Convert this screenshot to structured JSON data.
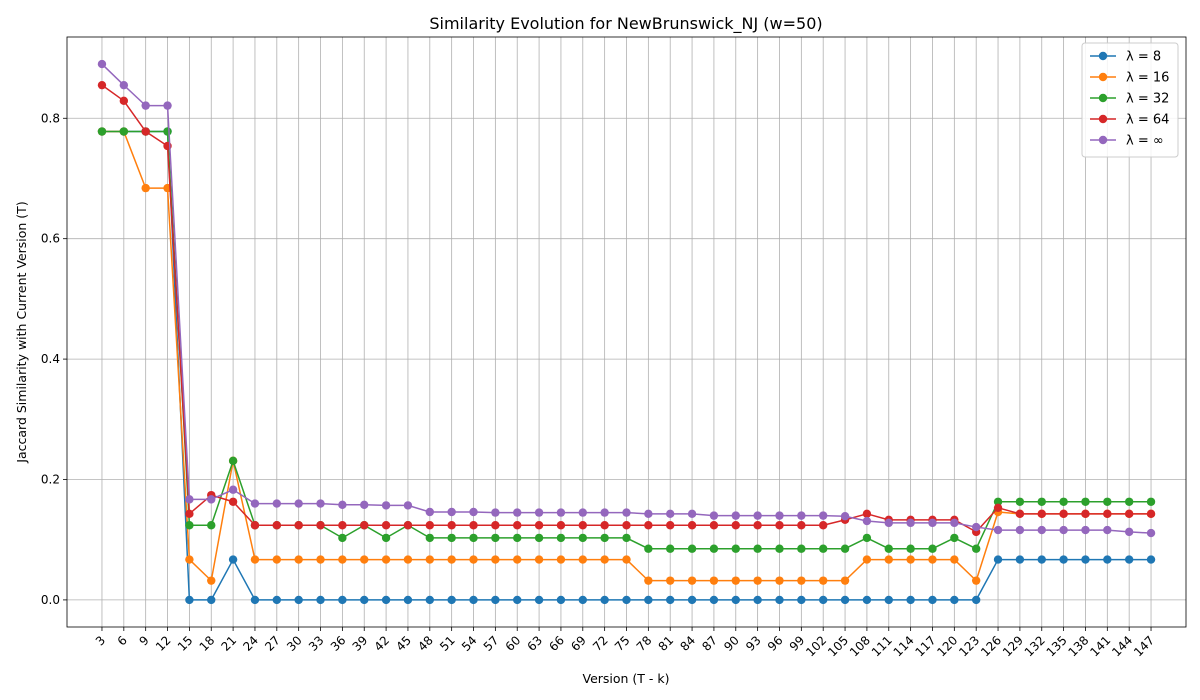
{
  "chart_data": {
    "type": "line",
    "title": "Similarity Evolution for NewBrunswick_NJ (w=50)",
    "xlabel": "Version (T - k)",
    "ylabel": "Jaccard Similarity with Current Version (T)",
    "x": [
      3,
      6,
      9,
      12,
      15,
      18,
      21,
      24,
      27,
      30,
      33,
      36,
      39,
      42,
      45,
      48,
      51,
      54,
      57,
      60,
      63,
      66,
      69,
      72,
      75,
      78,
      81,
      84,
      87,
      90,
      93,
      96,
      99,
      102,
      105,
      108,
      111,
      114,
      117,
      120,
      123,
      126,
      129,
      132,
      135,
      138,
      141,
      144,
      147
    ],
    "xlim": [
      -1.8,
      151.8
    ],
    "ylim": [
      -0.045,
      0.935
    ],
    "yticks": [
      0.0,
      0.2,
      0.4,
      0.6,
      0.8
    ],
    "ytick_labels": [
      "0.0",
      "0.2",
      "0.4",
      "0.6",
      "0.8"
    ],
    "xtick_rotation_deg": 45,
    "grid": true,
    "marker": "circle",
    "legend_position": "upper right",
    "series": [
      {
        "name": "λ = 8",
        "color": "#1f77b4",
        "values": [
          0.778,
          0.778,
          0.778,
          0.778,
          0.0,
          0.0,
          0.067,
          0.0,
          0.0,
          0.0,
          0.0,
          0.0,
          0.0,
          0.0,
          0.0,
          0.0,
          0.0,
          0.0,
          0.0,
          0.0,
          0.0,
          0.0,
          0.0,
          0.0,
          0.0,
          0.0,
          0.0,
          0.0,
          0.0,
          0.0,
          0.0,
          0.0,
          0.0,
          0.0,
          0.0,
          0.0,
          0.0,
          0.0,
          0.0,
          0.0,
          0.0,
          0.067,
          0.067,
          0.067,
          0.067,
          0.067,
          0.067,
          0.067,
          0.067
        ]
      },
      {
        "name": "λ = 16",
        "color": "#ff7f0e",
        "values": [
          0.778,
          0.778,
          0.684,
          0.684,
          0.067,
          0.032,
          0.231,
          0.067,
          0.067,
          0.067,
          0.067,
          0.067,
          0.067,
          0.067,
          0.067,
          0.067,
          0.067,
          0.067,
          0.067,
          0.067,
          0.067,
          0.067,
          0.067,
          0.067,
          0.067,
          0.032,
          0.032,
          0.032,
          0.032,
          0.032,
          0.032,
          0.032,
          0.032,
          0.032,
          0.032,
          0.067,
          0.067,
          0.067,
          0.067,
          0.067,
          0.032,
          0.146,
          0.143,
          0.143,
          0.143,
          0.143,
          0.143,
          0.143,
          0.143
        ]
      },
      {
        "name": "λ = 32",
        "color": "#2ca02c",
        "values": [
          0.778,
          0.778,
          0.778,
          0.778,
          0.124,
          0.124,
          0.231,
          0.124,
          0.124,
          0.124,
          0.124,
          0.103,
          0.124,
          0.103,
          0.124,
          0.103,
          0.103,
          0.103,
          0.103,
          0.103,
          0.103,
          0.103,
          0.103,
          0.103,
          0.103,
          0.085,
          0.085,
          0.085,
          0.085,
          0.085,
          0.085,
          0.085,
          0.085,
          0.085,
          0.085,
          0.103,
          0.085,
          0.085,
          0.085,
          0.103,
          0.085,
          0.163,
          0.163,
          0.163,
          0.163,
          0.163,
          0.163,
          0.163,
          0.163
        ]
      },
      {
        "name": "λ = 64",
        "color": "#d62728",
        "values": [
          0.855,
          0.829,
          0.778,
          0.754,
          0.143,
          0.174,
          0.163,
          0.124,
          0.124,
          0.124,
          0.124,
          0.124,
          0.124,
          0.124,
          0.124,
          0.124,
          0.124,
          0.124,
          0.124,
          0.124,
          0.124,
          0.124,
          0.124,
          0.124,
          0.124,
          0.124,
          0.124,
          0.124,
          0.124,
          0.124,
          0.124,
          0.124,
          0.124,
          0.124,
          0.133,
          0.143,
          0.133,
          0.133,
          0.133,
          0.133,
          0.113,
          0.153,
          0.143,
          0.143,
          0.143,
          0.143,
          0.143,
          0.143,
          0.143
        ]
      },
      {
        "name": "λ = ∞",
        "color": "#9467bd",
        "values": [
          0.89,
          0.855,
          0.821,
          0.821,
          0.167,
          0.167,
          0.183,
          0.16,
          0.16,
          0.16,
          0.16,
          0.158,
          0.158,
          0.157,
          0.157,
          0.146,
          0.146,
          0.146,
          0.145,
          0.145,
          0.145,
          0.145,
          0.145,
          0.145,
          0.145,
          0.143,
          0.143,
          0.143,
          0.14,
          0.14,
          0.14,
          0.14,
          0.14,
          0.14,
          0.139,
          0.131,
          0.128,
          0.128,
          0.128,
          0.128,
          0.121,
          0.116,
          0.116,
          0.116,
          0.116,
          0.116,
          0.116,
          0.113,
          0.111
        ]
      }
    ]
  }
}
